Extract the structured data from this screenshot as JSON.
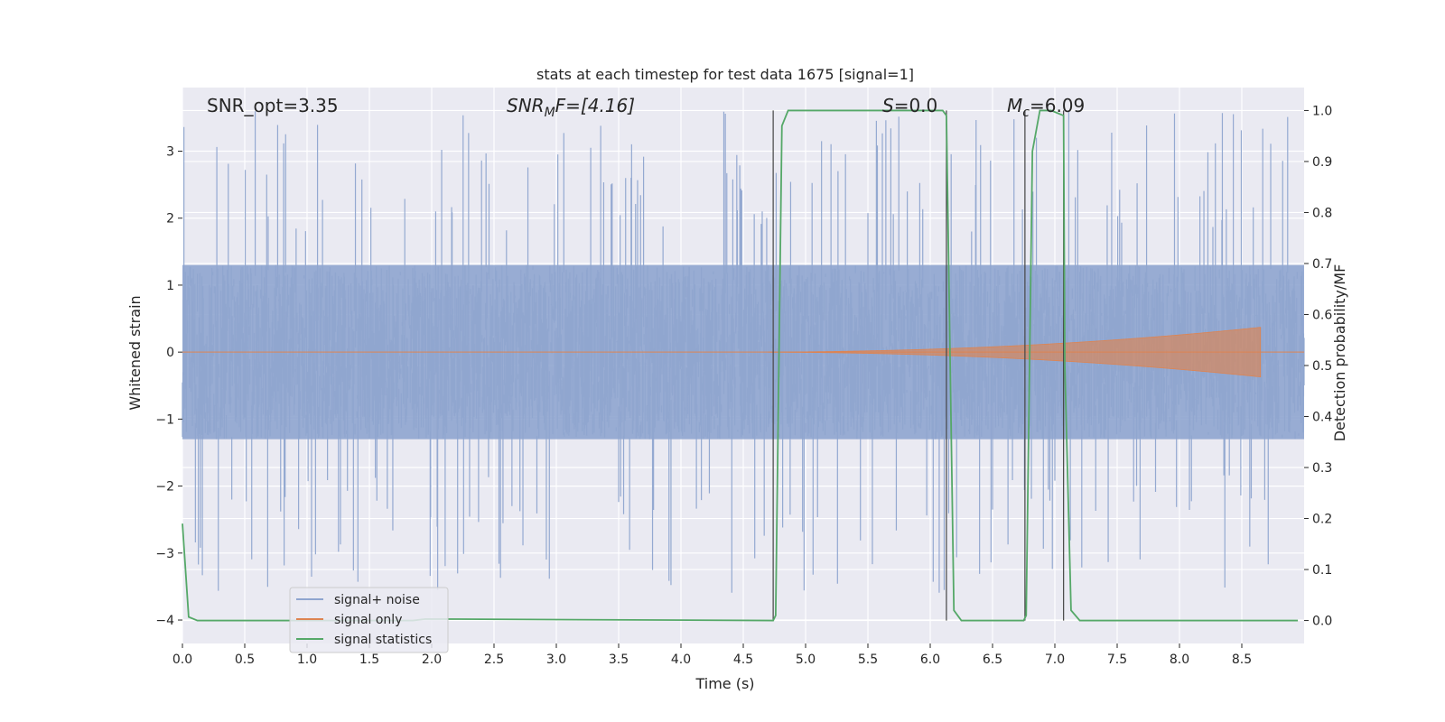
{
  "chart_data": {
    "type": "line",
    "title": "stats at each timestep for test data 1675 [signal=1]",
    "xlabel": "Time (s)",
    "ylabel": "Whitened strain",
    "y2label": "Detection probability/MF",
    "xlim": [
      0.0,
      9.0
    ],
    "ylim": [
      -4.35,
      3.95
    ],
    "y2lim": [
      -0.045,
      1.045
    ],
    "xticks": [
      "0.0",
      "0.5",
      "1.0",
      "1.5",
      "2.0",
      "2.5",
      "3.0",
      "3.5",
      "4.0",
      "4.5",
      "5.0",
      "5.5",
      "6.0",
      "6.5",
      "7.0",
      "7.5",
      "8.0",
      "8.5"
    ],
    "yticks": [
      "3",
      "2",
      "1",
      "0",
      "−1",
      "−2",
      "−3",
      "−4"
    ],
    "y2ticks": [
      "1.0",
      "0.9",
      "0.8",
      "0.7",
      "0.6",
      "0.5",
      "0.4",
      "0.3",
      "0.2",
      "0.1",
      "0.0"
    ],
    "grid": true,
    "legend_position": "lower-left",
    "annotations": {
      "snr_opt": "SNR_opt=3.35",
      "snr_mf": {
        "main": "SNR",
        "sub": "M",
        "tail": "F=[4.16]"
      },
      "s_stat": {
        "main": "S",
        "tail": "=0.0"
      },
      "mc": {
        "main": "M",
        "sub": "c",
        "tail": "=6.09"
      }
    },
    "series": [
      {
        "name": "signal+ noise",
        "color": "#8fa5cf",
        "noise_envelope": {
          "core_amplitude": 1.3,
          "peak_amplitude": 3.6,
          "trough_amplitude": -3.6
        }
      },
      {
        "name": "signal only",
        "color": "#dd8452",
        "chirp": {
          "start_time": 4.7,
          "peak_time": 8.65,
          "peak_amplitude": 0.37,
          "end_time": 8.66
        }
      },
      {
        "name": "signal statistics",
        "color": "#55a868",
        "x": [
          0.0,
          0.05,
          0.12,
          1.85,
          1.95,
          4.74,
          4.76,
          4.81,
          4.86,
          5.5,
          6.0,
          6.1,
          6.13,
          6.19,
          6.25,
          6.75,
          6.77,
          6.82,
          6.88,
          6.97,
          7.07,
          7.08,
          7.13,
          7.2,
          8.95
        ],
        "y": [
          0.19,
          0.007,
          0.0,
          0.0,
          0.003,
          0.0,
          0.01,
          0.97,
          1.0,
          1.0,
          1.0,
          1.0,
          0.99,
          0.02,
          0.0,
          0.0,
          0.01,
          0.92,
          1.0,
          1.0,
          0.99,
          0.5,
          0.02,
          0.0,
          0.0
        ]
      }
    ],
    "markers": [
      {
        "x": 4.74,
        "y_bottom": 0.0,
        "y_top": 1.0
      },
      {
        "x": 6.13,
        "y_bottom": 0.0,
        "y_top": 1.0
      },
      {
        "x": 6.76,
        "y_bottom": 0.0,
        "y_top": 1.0
      },
      {
        "x": 7.07,
        "y_bottom": 0.0,
        "y_top": 1.0
      }
    ]
  }
}
